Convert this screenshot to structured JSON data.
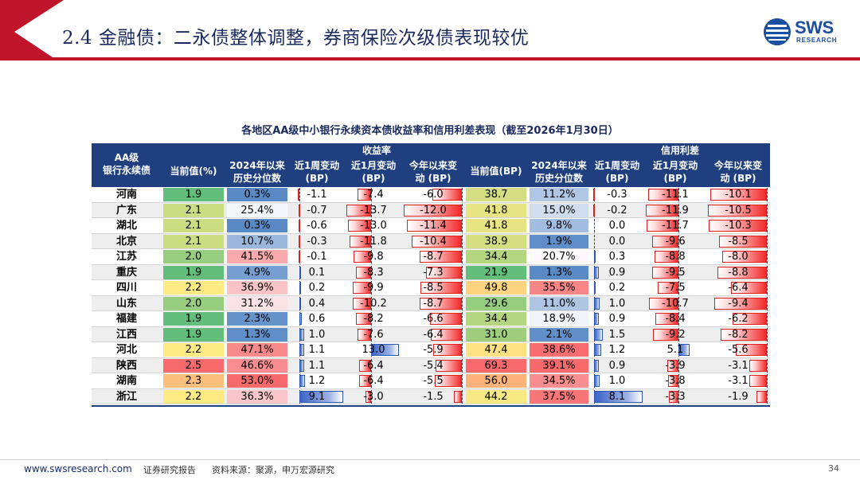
{
  "header": {
    "title": "2.4 金融债：二永债整体调整，券商保险次级债表现较优",
    "logo_text": "SWS",
    "logo_sub": "RESEARCH",
    "accent_color": "#c0142a"
  },
  "table": {
    "title": "各地区AA级中小银行永续资本债收益率和信用利差表现（截至2026年1月30日）",
    "group_yield": "收益率",
    "group_spread": "信用利差",
    "col_region_1": "AA级",
    "col_region_2": "银行永续债",
    "col_current_pct": "当前值(%)",
    "col_pctile_1": "2024年以来",
    "col_pctile_2": "历史分位数",
    "col_1w_1": "近1周变动",
    "col_1w_2": "(BP)",
    "col_1m_1": "近1月变动",
    "col_1m_2": "(BP)",
    "col_ytd_1": "今年以来变",
    "col_ytd_2": "动 (BP)",
    "col_current_bp": "当前值(BP)",
    "col_pctile2_1": "2024年以来",
    "col_pctile2_2": "历史分位数",
    "col_s1w_1": "近1周变动",
    "col_s1w_2": "(BP)",
    "col_s1m_1": "近1月变动",
    "col_s1m_2": "(BP)",
    "col_sytd_1": "今年以来变",
    "col_sytd_2": "动 (BP)",
    "rows": [
      {
        "region": "河南",
        "y": "1.9",
        "yp": "0.3%",
        "y1w": "-1.1",
        "y1m": "-7.4",
        "yytd": "-6.0",
        "s": "38.7",
        "sp": "11.2%",
        "s1w": "-0.3",
        "s1m": "-11.1",
        "sytd": "-10.1"
      },
      {
        "region": "广东",
        "y": "2.1",
        "yp": "25.4%",
        "y1w": "-0.7",
        "y1m": "-13.7",
        "yytd": "-12.0",
        "s": "41.8",
        "sp": "15.0%",
        "s1w": "-0.2",
        "s1m": "-11.9",
        "sytd": "-10.5"
      },
      {
        "region": "湖北",
        "y": "2.1",
        "yp": "0.3%",
        "y1w": "-0.6",
        "y1m": "-13.0",
        "yytd": "-11.4",
        "s": "41.8",
        "sp": "9.8%",
        "s1w": "0.0",
        "s1m": "-11.7",
        "sytd": "-10.3"
      },
      {
        "region": "北京",
        "y": "2.1",
        "yp": "10.7%",
        "y1w": "-0.3",
        "y1m": "-11.8",
        "yytd": "-10.4",
        "s": "38.9",
        "sp": "1.9%",
        "s1w": "0.0",
        "s1m": "-9.6",
        "sytd": "-8.5"
      },
      {
        "region": "江苏",
        "y": "2.0",
        "yp": "41.5%",
        "y1w": "-0.1",
        "y1m": "-9.8",
        "yytd": "-8.7",
        "s": "34.4",
        "sp": "20.7%",
        "s1w": "0.3",
        "s1m": "-8.8",
        "sytd": "-8.0"
      },
      {
        "region": "重庆",
        "y": "1.9",
        "yp": "4.9%",
        "y1w": "0.1",
        "y1m": "-8.3",
        "yytd": "-7.3",
        "s": "21.9",
        "sp": "1.3%",
        "s1w": "0.9",
        "s1m": "-9.5",
        "sytd": "-8.8"
      },
      {
        "region": "四川",
        "y": "2.2",
        "yp": "36.9%",
        "y1w": "0.2",
        "y1m": "-9.9",
        "yytd": "-8.5",
        "s": "49.8",
        "sp": "35.5%",
        "s1w": "0.2",
        "s1m": "-7.5",
        "sytd": "-6.4"
      },
      {
        "region": "山东",
        "y": "2.0",
        "yp": "31.2%",
        "y1w": "0.4",
        "y1m": "-10.2",
        "yytd": "-8.7",
        "s": "29.6",
        "sp": "11.0%",
        "s1w": "1.0",
        "s1m": "-10.7",
        "sytd": "-9.4"
      },
      {
        "region": "福建",
        "y": "1.9",
        "yp": "2.3%",
        "y1w": "0.6",
        "y1m": "-8.2",
        "yytd": "-6.6",
        "s": "34.4",
        "sp": "18.9%",
        "s1w": "0.9",
        "s1m": "-8.4",
        "sytd": "-6.2"
      },
      {
        "region": "江西",
        "y": "1.9",
        "yp": "1.3%",
        "y1w": "1.0",
        "y1m": "-7.6",
        "yytd": "-6.4",
        "s": "31.0",
        "sp": "2.1%",
        "s1w": "1.5",
        "s1m": "-9.2",
        "sytd": "-8.2"
      },
      {
        "region": "河北",
        "y": "2.2",
        "yp": "47.1%",
        "y1w": "1.1",
        "y1m": "13.0",
        "yytd": "-5.9",
        "s": "47.4",
        "sp": "38.6%",
        "s1w": "1.2",
        "s1m": "5.1",
        "sytd": "-5.6"
      },
      {
        "region": "陕西",
        "y": "2.5",
        "yp": "46.6%",
        "y1w": "1.1",
        "y1m": "-6.4",
        "yytd": "-5.4",
        "s": "69.3",
        "sp": "39.1%",
        "s1w": "0.9",
        "s1m": "-3.9",
        "sytd": "-3.1"
      },
      {
        "region": "湖南",
        "y": "2.3",
        "yp": "53.0%",
        "y1w": "1.2",
        "y1m": "-6.4",
        "yytd": "-5.5",
        "s": "56.0",
        "sp": "34.5%",
        "s1w": "1.0",
        "s1m": "-3.8",
        "sytd": "-3.1"
      },
      {
        "region": "浙江",
        "y": "2.2",
        "yp": "36.3%",
        "y1w": "9.1",
        "y1m": "-3.0",
        "yytd": "-1.5",
        "s": "44.2",
        "sp": "37.5%",
        "s1w": "8.1",
        "s1m": "-3.3",
        "sytd": "-1.9"
      }
    ]
  },
  "footer": {
    "url": "www.swsresearch.com",
    "report": "证券研究报告",
    "source": "资料来源：聚源，申万宏源研究",
    "page": "34"
  }
}
